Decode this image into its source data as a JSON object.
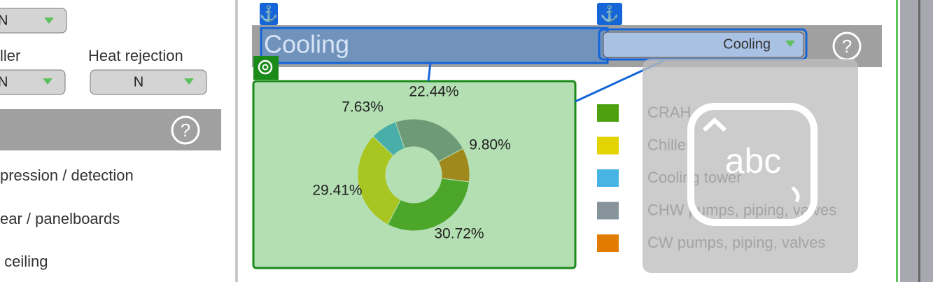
{
  "left_panel": {
    "top_select": "N",
    "chiller_label": "ller",
    "chiller_select": "N",
    "heat_rejection_label": "Heat rejection",
    "heat_rejection_select": "N",
    "items": [
      "pression / detection",
      "ear / panelboards",
      " ceiling"
    ]
  },
  "cooling_panel": {
    "title": "Cooling",
    "dropdown": "Cooling",
    "donut": {
      "values": [
        22.44,
        9.8,
        30.72,
        29.41,
        7.63
      ],
      "value_labels": [
        "22.44%",
        "9.80%",
        "30.72%",
        "29.41%",
        "7.63%"
      ],
      "colors": [
        "#6e9a78",
        "#a0891c",
        "#4ca62a",
        "#a9c521",
        "#4aaea8"
      ]
    },
    "legend": [
      {
        "name": "CRAH",
        "color": "#4da00e"
      },
      {
        "name": "Chiller",
        "color": "#e3d300"
      },
      {
        "name": "Cooling tower",
        "color": "#48b4e4"
      },
      {
        "name": "CHW pumps, piping, valves",
        "color": "#87949b"
      },
      {
        "name": "CW pumps, piping, valves",
        "color": "#e27c00"
      }
    ]
  },
  "overlay": {
    "icon_text": "abc"
  }
}
